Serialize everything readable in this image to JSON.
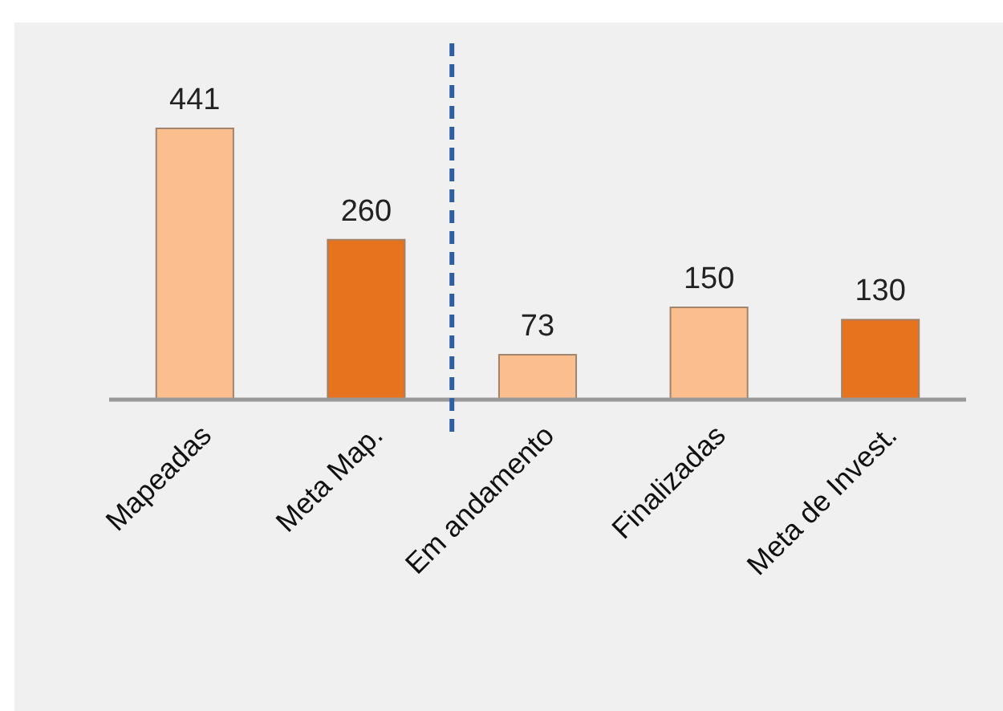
{
  "chart_data": {
    "type": "bar",
    "categories": [
      "Mapeadas",
      "Meta Map.",
      "Em andamento",
      "Finalizadas",
      "Meta de Invest."
    ],
    "values": [
      441,
      260,
      73,
      150,
      130
    ],
    "colors": [
      "#fbbf8f",
      "#e8731e",
      "#fbbf8f",
      "#fbbf8f",
      "#e8731e"
    ],
    "data_labels": true
  }
}
